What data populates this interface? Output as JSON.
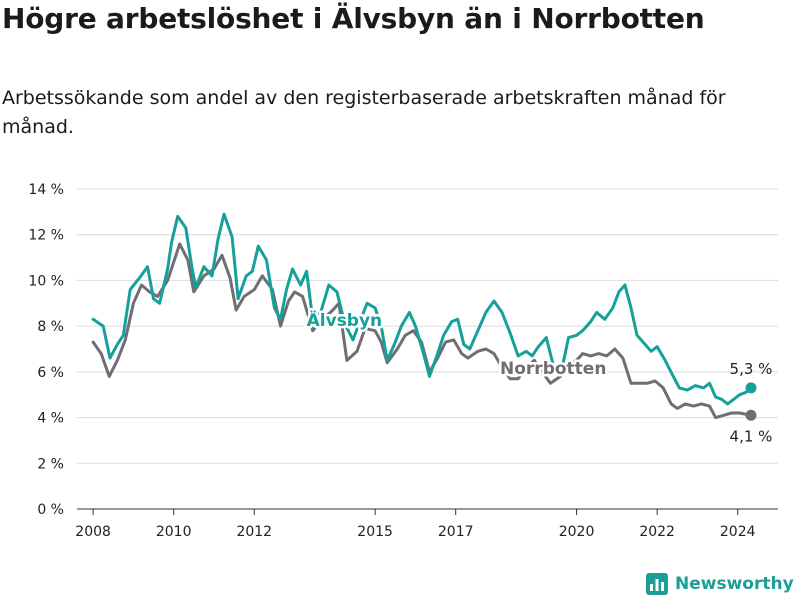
{
  "title": "Högre arbetslöshet i Älvsbyn än i Norrbotten",
  "subtitle": "Arbetssökande som andel av den registerbaserade arbetskraften månad för månad.",
  "brand": "Newsworthy",
  "colors": {
    "alvsbyn": "#15a19a",
    "norrbotten": "#6f6e72",
    "grid": "#dcdcdc",
    "axis": "#333333"
  },
  "chart_data": {
    "type": "line",
    "title": "Högre arbetslöshet i Älvsbyn än i Norrbotten",
    "xlabel": "",
    "ylabel": "",
    "x_range": [
      2007.6,
      2025.0
    ],
    "ylim": [
      0,
      14
    ],
    "x_ticks": [
      2008,
      2010,
      2012,
      2015,
      2017,
      2020,
      2022,
      2024
    ],
    "x_tick_labels": [
      "2008",
      "2010",
      "2012",
      "2015",
      "2017",
      "2020",
      "2022",
      "2024"
    ],
    "y_ticks": [
      0,
      2,
      4,
      6,
      8,
      10,
      12,
      14
    ],
    "y_tick_labels": [
      "0 %",
      "2 %",
      "4 %",
      "6 %",
      "8 %",
      "10 %",
      "12 %",
      "14 %"
    ],
    "grid": true,
    "series": [
      {
        "name": "Älvsbyn",
        "label": "Älvsbyn",
        "end_label": "5,3 %",
        "color": "#15a19a",
        "points": [
          [
            2008.0,
            8.3
          ],
          [
            2008.25,
            8.0
          ],
          [
            2008.42,
            6.6
          ],
          [
            2008.6,
            7.2
          ],
          [
            2008.75,
            7.6
          ],
          [
            2008.92,
            9.6
          ],
          [
            2009.15,
            10.1
          ],
          [
            2009.35,
            10.6
          ],
          [
            2009.5,
            9.2
          ],
          [
            2009.65,
            9.0
          ],
          [
            2009.85,
            10.5
          ],
          [
            2009.95,
            11.7
          ],
          [
            2010.1,
            12.8
          ],
          [
            2010.3,
            12.3
          ],
          [
            2010.45,
            10.6
          ],
          [
            2010.55,
            9.7
          ],
          [
            2010.75,
            10.6
          ],
          [
            2010.95,
            10.2
          ],
          [
            2011.1,
            11.8
          ],
          [
            2011.25,
            12.9
          ],
          [
            2011.45,
            11.9
          ],
          [
            2011.6,
            9.2
          ],
          [
            2011.8,
            10.2
          ],
          [
            2011.95,
            10.4
          ],
          [
            2012.1,
            11.5
          ],
          [
            2012.3,
            10.9
          ],
          [
            2012.5,
            8.8
          ],
          [
            2012.65,
            8.3
          ],
          [
            2012.8,
            9.6
          ],
          [
            2012.95,
            10.5
          ],
          [
            2013.15,
            9.8
          ],
          [
            2013.3,
            10.4
          ],
          [
            2013.45,
            8.3
          ],
          [
            2013.65,
            8.6
          ],
          [
            2013.85,
            9.8
          ],
          [
            2014.05,
            9.5
          ],
          [
            2014.25,
            8.1
          ],
          [
            2014.45,
            7.4
          ],
          [
            2014.6,
            8.1
          ],
          [
            2014.8,
            9.0
          ],
          [
            2015.0,
            8.8
          ],
          [
            2015.15,
            8.0
          ],
          [
            2015.3,
            6.5
          ],
          [
            2015.5,
            7.3
          ],
          [
            2015.65,
            8.0
          ],
          [
            2015.85,
            8.6
          ],
          [
            2016.0,
            8.0
          ],
          [
            2016.2,
            6.8
          ],
          [
            2016.35,
            5.8
          ],
          [
            2016.55,
            6.8
          ],
          [
            2016.7,
            7.6
          ],
          [
            2016.9,
            8.2
          ],
          [
            2017.05,
            8.3
          ],
          [
            2017.2,
            7.2
          ],
          [
            2017.35,
            7.0
          ],
          [
            2017.55,
            7.8
          ],
          [
            2017.75,
            8.6
          ],
          [
            2017.95,
            9.1
          ],
          [
            2018.15,
            8.6
          ],
          [
            2018.35,
            7.7
          ],
          [
            2018.55,
            6.7
          ],
          [
            2018.75,
            6.9
          ],
          [
            2018.9,
            6.7
          ],
          [
            2019.05,
            7.1
          ],
          [
            2019.25,
            7.5
          ],
          [
            2019.45,
            6.1
          ],
          [
            2019.6,
            5.8
          ],
          [
            2019.8,
            7.5
          ],
          [
            2020.0,
            7.6
          ],
          [
            2020.15,
            7.8
          ],
          [
            2020.35,
            8.2
          ],
          [
            2020.5,
            8.6
          ],
          [
            2020.7,
            8.3
          ],
          [
            2020.9,
            8.8
          ],
          [
            2021.05,
            9.5
          ],
          [
            2021.2,
            9.8
          ],
          [
            2021.35,
            8.8
          ],
          [
            2021.5,
            7.6
          ],
          [
            2021.7,
            7.2
          ],
          [
            2021.85,
            6.9
          ],
          [
            2022.0,
            7.1
          ],
          [
            2022.2,
            6.5
          ],
          [
            2022.4,
            5.8
          ],
          [
            2022.55,
            5.3
          ],
          [
            2022.75,
            5.2
          ],
          [
            2022.95,
            5.4
          ],
          [
            2023.15,
            5.3
          ],
          [
            2023.3,
            5.5
          ],
          [
            2023.45,
            4.9
          ],
          [
            2023.6,
            4.8
          ],
          [
            2023.75,
            4.6
          ],
          [
            2023.9,
            4.8
          ],
          [
            2024.05,
            5.0
          ],
          [
            2024.2,
            5.1
          ],
          [
            2024.33,
            5.3
          ]
        ]
      },
      {
        "name": "Norrbotten",
        "label": "Norrbotten",
        "end_label": "4,1 %",
        "color": "#6f6e72",
        "points": [
          [
            2008.0,
            7.3
          ],
          [
            2008.2,
            6.8
          ],
          [
            2008.4,
            5.8
          ],
          [
            2008.6,
            6.5
          ],
          [
            2008.8,
            7.4
          ],
          [
            2009.0,
            9.0
          ],
          [
            2009.2,
            9.8
          ],
          [
            2009.4,
            9.5
          ],
          [
            2009.6,
            9.3
          ],
          [
            2009.85,
            10.0
          ],
          [
            2010.0,
            10.8
          ],
          [
            2010.15,
            11.6
          ],
          [
            2010.35,
            10.9
          ],
          [
            2010.5,
            9.5
          ],
          [
            2010.75,
            10.2
          ],
          [
            2011.0,
            10.5
          ],
          [
            2011.2,
            11.1
          ],
          [
            2011.4,
            10.1
          ],
          [
            2011.55,
            8.7
          ],
          [
            2011.75,
            9.3
          ],
          [
            2012.0,
            9.6
          ],
          [
            2012.2,
            10.2
          ],
          [
            2012.45,
            9.6
          ],
          [
            2012.65,
            8.0
          ],
          [
            2012.85,
            9.1
          ],
          [
            2013.0,
            9.5
          ],
          [
            2013.2,
            9.3
          ],
          [
            2013.45,
            7.8
          ],
          [
            2013.7,
            8.3
          ],
          [
            2013.95,
            8.7
          ],
          [
            2014.1,
            9.0
          ],
          [
            2014.3,
            6.5
          ],
          [
            2014.55,
            6.9
          ],
          [
            2014.75,
            7.9
          ],
          [
            2015.0,
            7.8
          ],
          [
            2015.15,
            7.3
          ],
          [
            2015.3,
            6.4
          ],
          [
            2015.55,
            7.0
          ],
          [
            2015.75,
            7.6
          ],
          [
            2015.95,
            7.8
          ],
          [
            2016.15,
            7.3
          ],
          [
            2016.35,
            6.0
          ],
          [
            2016.55,
            6.6
          ],
          [
            2016.75,
            7.3
          ],
          [
            2016.95,
            7.4
          ],
          [
            2017.15,
            6.8
          ],
          [
            2017.3,
            6.6
          ],
          [
            2017.55,
            6.9
          ],
          [
            2017.75,
            7.0
          ],
          [
            2017.95,
            6.8
          ],
          [
            2018.15,
            6.2
          ],
          [
            2018.35,
            5.7
          ],
          [
            2018.55,
            5.7
          ],
          [
            2018.75,
            6.2
          ],
          [
            2018.95,
            6.5
          ],
          [
            2019.15,
            6.0
          ],
          [
            2019.35,
            5.5
          ],
          [
            2019.6,
            5.8
          ],
          [
            2019.8,
            6.3
          ],
          [
            2020.0,
            6.5
          ],
          [
            2020.15,
            6.8
          ],
          [
            2020.35,
            6.7
          ],
          [
            2020.55,
            6.8
          ],
          [
            2020.75,
            6.7
          ],
          [
            2020.95,
            7.0
          ],
          [
            2021.15,
            6.6
          ],
          [
            2021.35,
            5.5
          ],
          [
            2021.55,
            5.5
          ],
          [
            2021.75,
            5.5
          ],
          [
            2021.95,
            5.6
          ],
          [
            2022.15,
            5.3
          ],
          [
            2022.35,
            4.6
          ],
          [
            2022.5,
            4.4
          ],
          [
            2022.7,
            4.6
          ],
          [
            2022.9,
            4.5
          ],
          [
            2023.1,
            4.6
          ],
          [
            2023.3,
            4.5
          ],
          [
            2023.45,
            4.0
          ],
          [
            2023.65,
            4.1
          ],
          [
            2023.85,
            4.2
          ],
          [
            2024.05,
            4.2
          ],
          [
            2024.33,
            4.1
          ]
        ]
      }
    ]
  }
}
